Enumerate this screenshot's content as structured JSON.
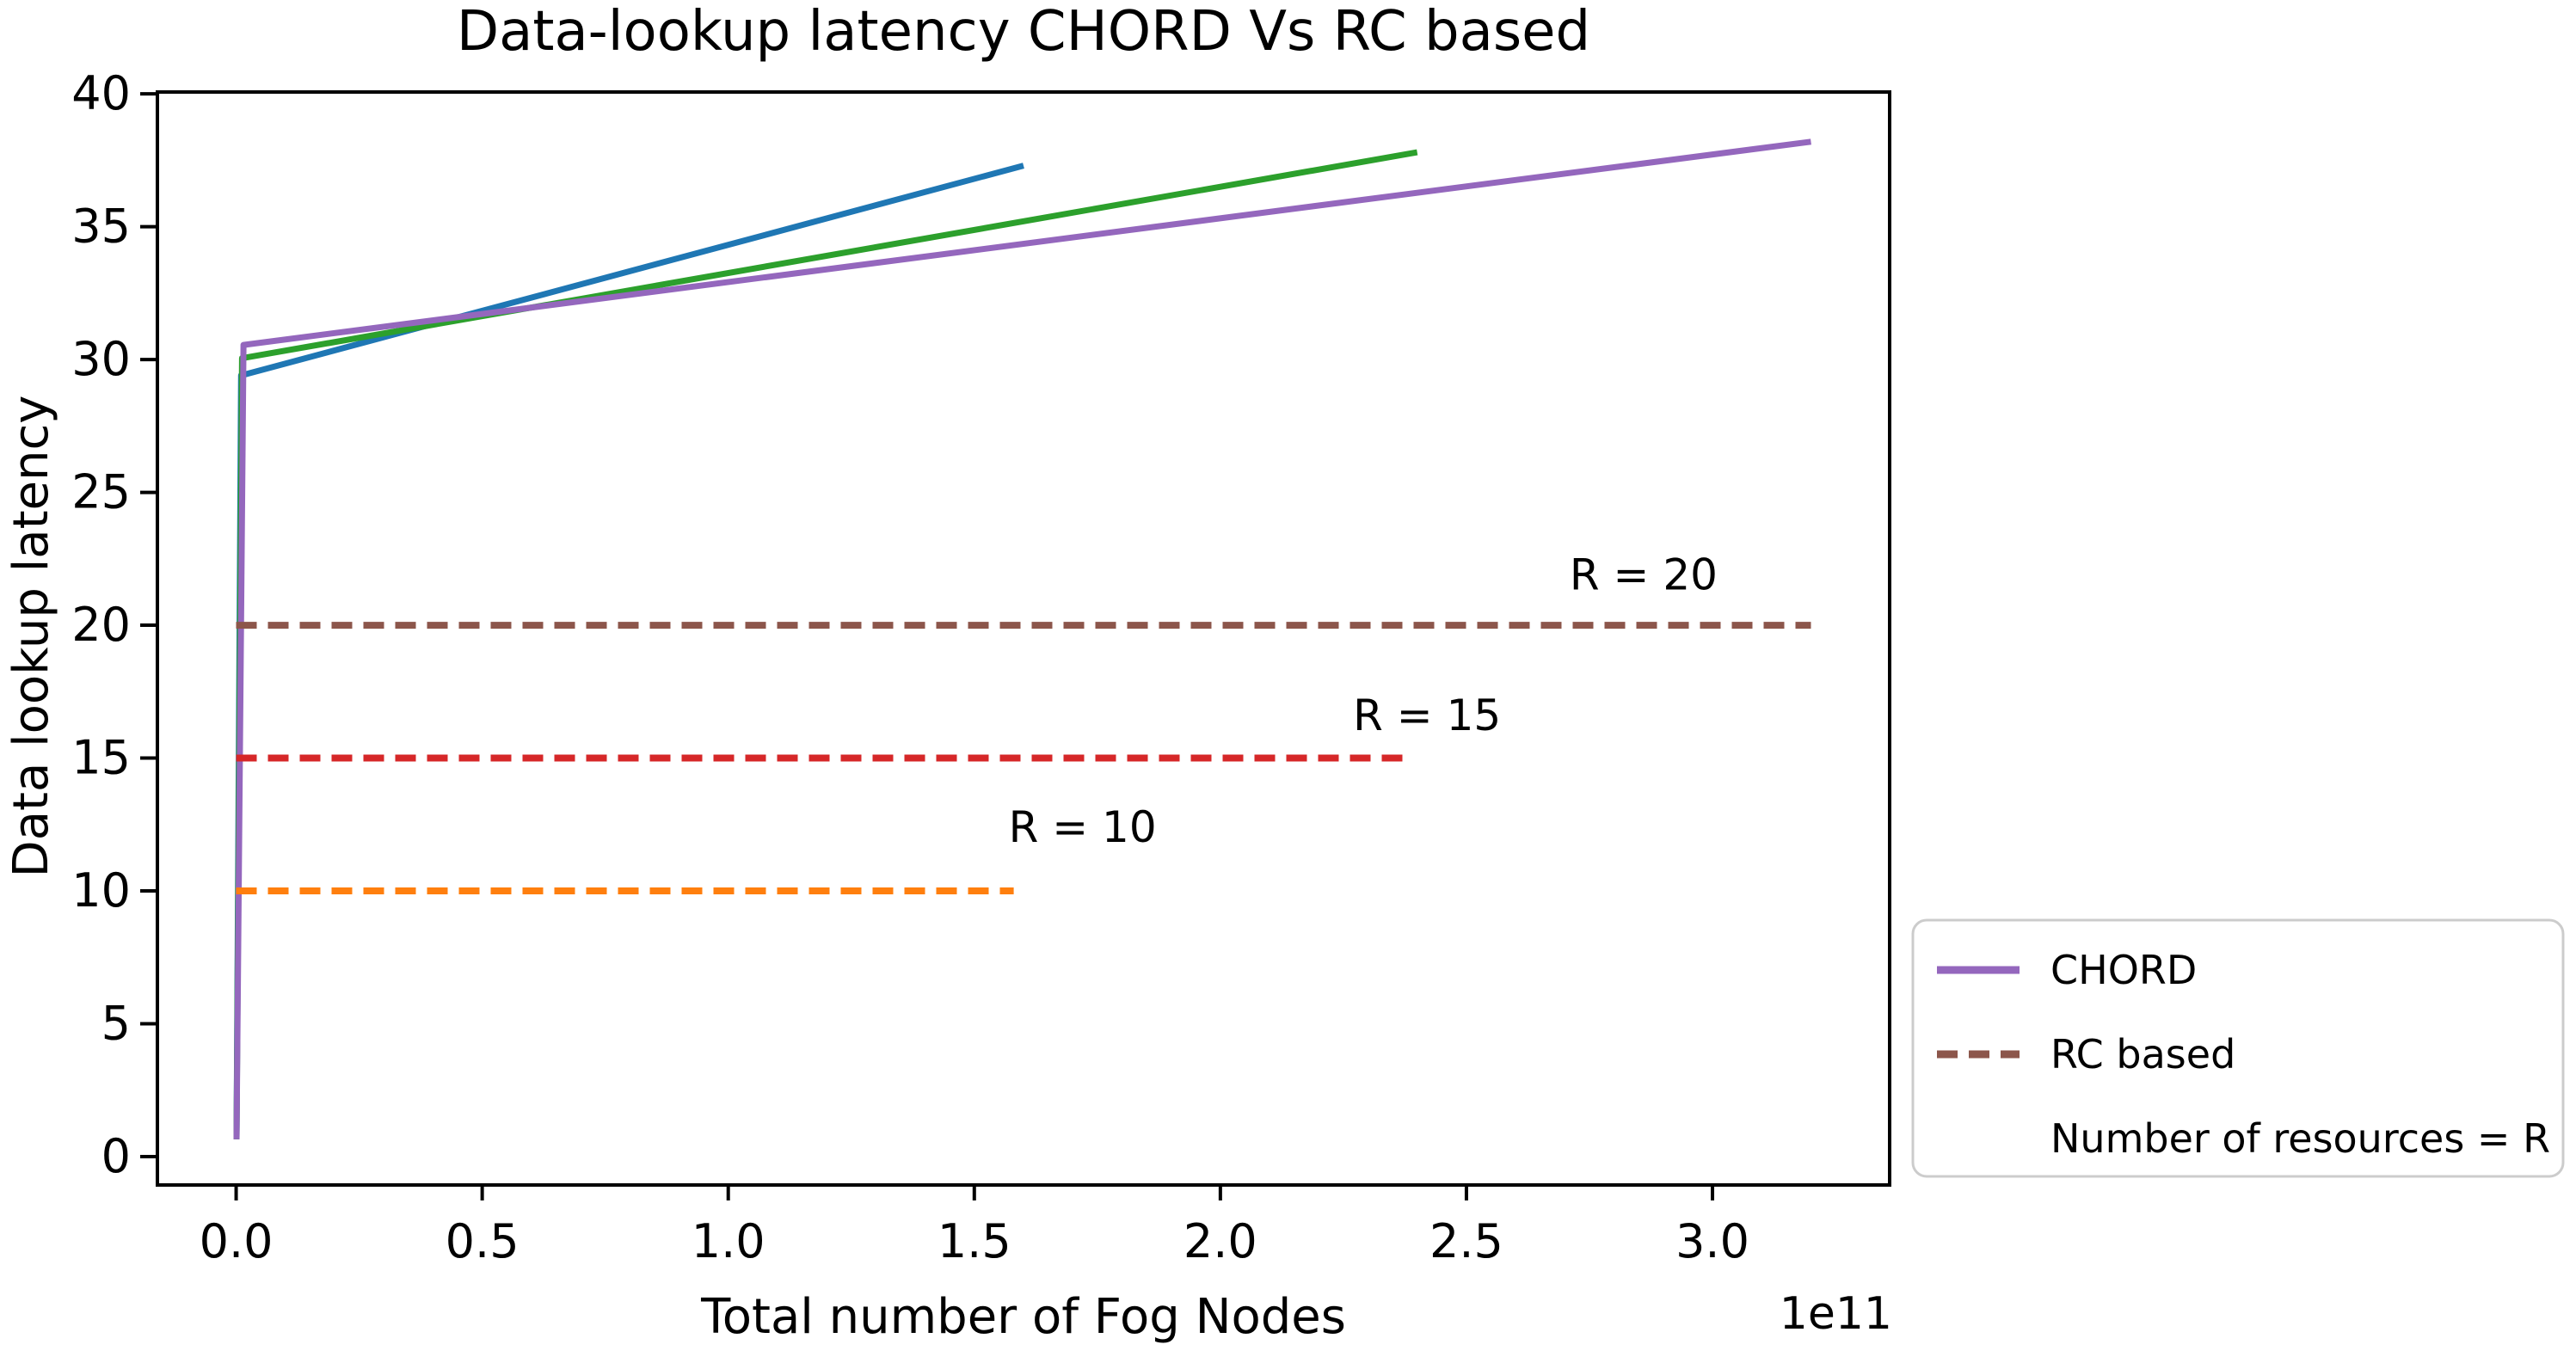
{
  "figure": {
    "title": "Data-lookup latency CHORD Vs RC based",
    "background_color": "#ffffff"
  },
  "chart_data": {
    "type": "line",
    "title": "Data-lookup latency CHORD Vs RC based",
    "xlabel": "Total number of Fog Nodes",
    "ylabel": "Data lookup latency",
    "x_offset_text": "1e11",
    "x_unit_multiplier": 100000000000.0,
    "xlim": [
      -0.16,
      3.36
    ],
    "ylim": [
      -1.07,
      40.07
    ],
    "grid": false,
    "x_ticks": {
      "values": [
        0,
        0.5,
        1.0,
        1.5,
        2.0,
        2.5,
        3.0
      ],
      "labels": [
        "0.0",
        "0.5",
        "1.0",
        "1.5",
        "2.0",
        "2.5",
        "3.0"
      ]
    },
    "y_ticks": {
      "values": [
        0,
        5,
        10,
        15,
        20,
        25,
        30,
        35,
        40
      ],
      "labels": [
        "0",
        "5",
        "10",
        "15",
        "20",
        "25",
        "30",
        "35",
        "40"
      ]
    },
    "series": [
      {
        "name": "CHORD curve 1 (blue, ends at 1.6e11 nodes)",
        "color": "#1f77b4",
        "style": "solid",
        "points": [
          [
            0.0008,
            0.65
          ],
          [
            0.01,
            29.4
          ],
          [
            1.6,
            37.3
          ]
        ]
      },
      {
        "name": "CHORD curve 2 (green, ends at 2.4e11 nodes)",
        "color": "#2ca02c",
        "style": "solid",
        "points": [
          [
            0.0008,
            0.65
          ],
          [
            0.012,
            30.05
          ],
          [
            2.4,
            37.8
          ]
        ]
      },
      {
        "name": "CHORD curve 3 (purple, ends at 3.2e11 nodes)",
        "color": "#9467bd",
        "style": "solid",
        "points": [
          [
            0.0008,
            0.65
          ],
          [
            0.015,
            30.55
          ],
          [
            3.2,
            38.2
          ]
        ]
      },
      {
        "name": "RC based, R = 10 (orange)",
        "color": "#ff7f0e",
        "style": "dashed",
        "points": [
          [
            0,
            10
          ],
          [
            1.58,
            10
          ]
        ]
      },
      {
        "name": "RC based, R = 15 (red)",
        "color": "#d62728",
        "style": "dashed",
        "points": [
          [
            0,
            15
          ],
          [
            2.38,
            15
          ]
        ]
      },
      {
        "name": "RC based, R = 20 (brown)",
        "color": "#8c564b",
        "style": "dashed",
        "points": [
          [
            0,
            20
          ],
          [
            3.2,
            20
          ]
        ]
      }
    ],
    "annotations": [
      {
        "text": "R = 10",
        "x": 1.72,
        "y": 12.4
      },
      {
        "text": "R = 15",
        "x": 2.42,
        "y": 16.6
      },
      {
        "text": "R = 20",
        "x": 2.86,
        "y": 21.9
      }
    ],
    "legend": {
      "position": "outside lower right",
      "entries": [
        {
          "label": "CHORD",
          "color": "#9467bd",
          "style": "solid"
        },
        {
          "label": "RC based",
          "color": "#8c564b",
          "style": "dashed"
        },
        {
          "label": "Number of resources = R",
          "color": "",
          "style": "none"
        }
      ]
    }
  }
}
